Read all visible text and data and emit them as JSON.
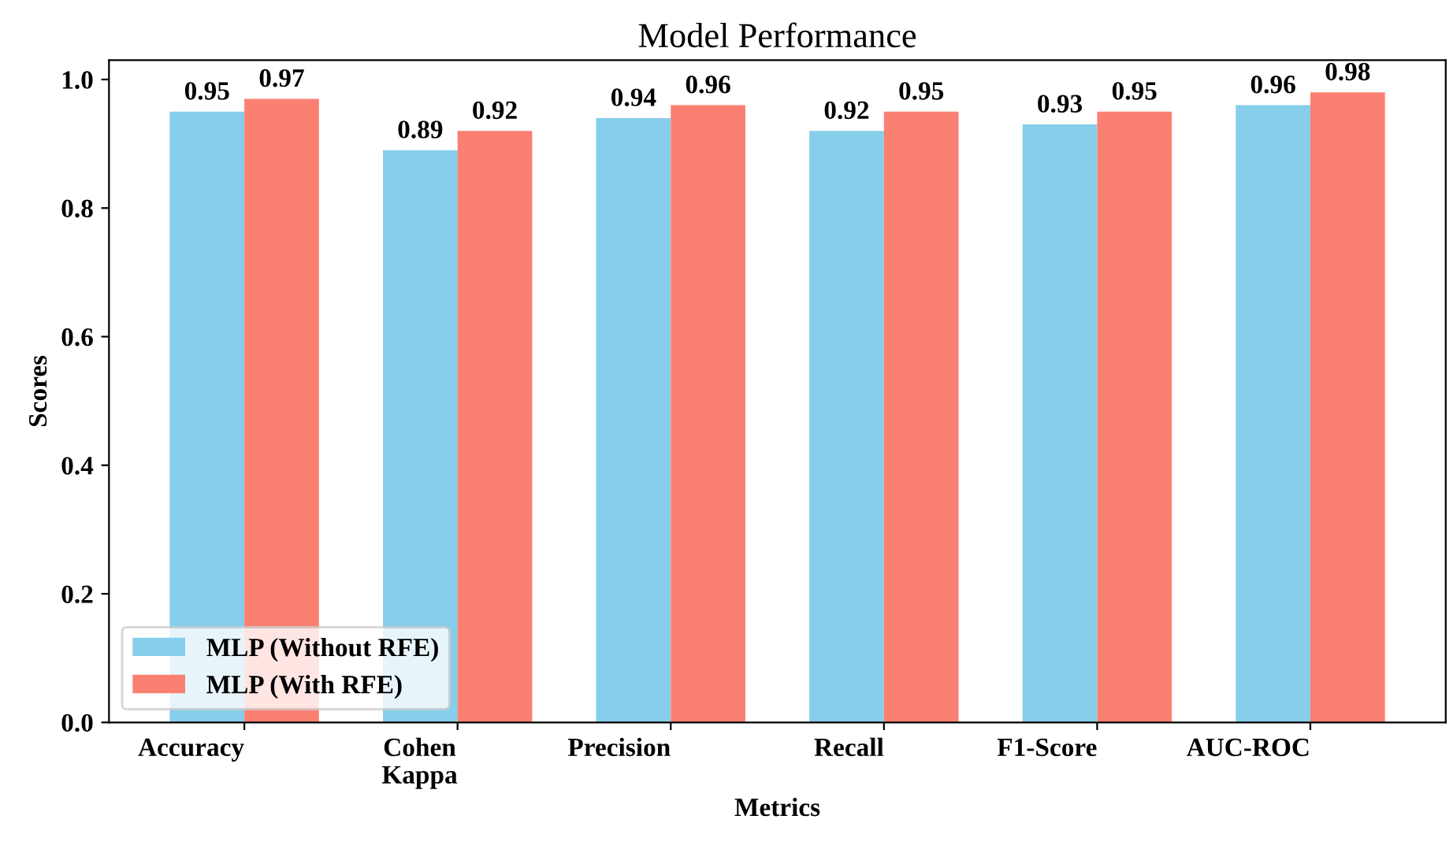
{
  "chart_data": {
    "type": "bar",
    "title": "Model Performance",
    "xlabel": "Metrics",
    "ylabel": "Scores",
    "categories": [
      "Accuracy",
      "Cohen\nKappa",
      "Precision",
      "Recall",
      "F1-Score",
      "AUC-ROC"
    ],
    "series": [
      {
        "name": "MLP (Without RFE)",
        "color": "#87ceeb",
        "values": [
          0.95,
          0.89,
          0.94,
          0.92,
          0.93,
          0.96
        ]
      },
      {
        "name": "MLP (With RFE)",
        "color": "#fa8072",
        "values": [
          0.97,
          0.92,
          0.96,
          0.95,
          0.95,
          0.98
        ]
      }
    ],
    "ylim": [
      0,
      1.03
    ],
    "yticks": [
      {
        "value": 0,
        "label": "0.0"
      },
      0.2,
      0.4,
      0.6,
      0.8,
      {
        "value": 1,
        "label": "1.0"
      }
    ],
    "data_labels": true,
    "legend": "bottom left",
    "grid": false
  }
}
